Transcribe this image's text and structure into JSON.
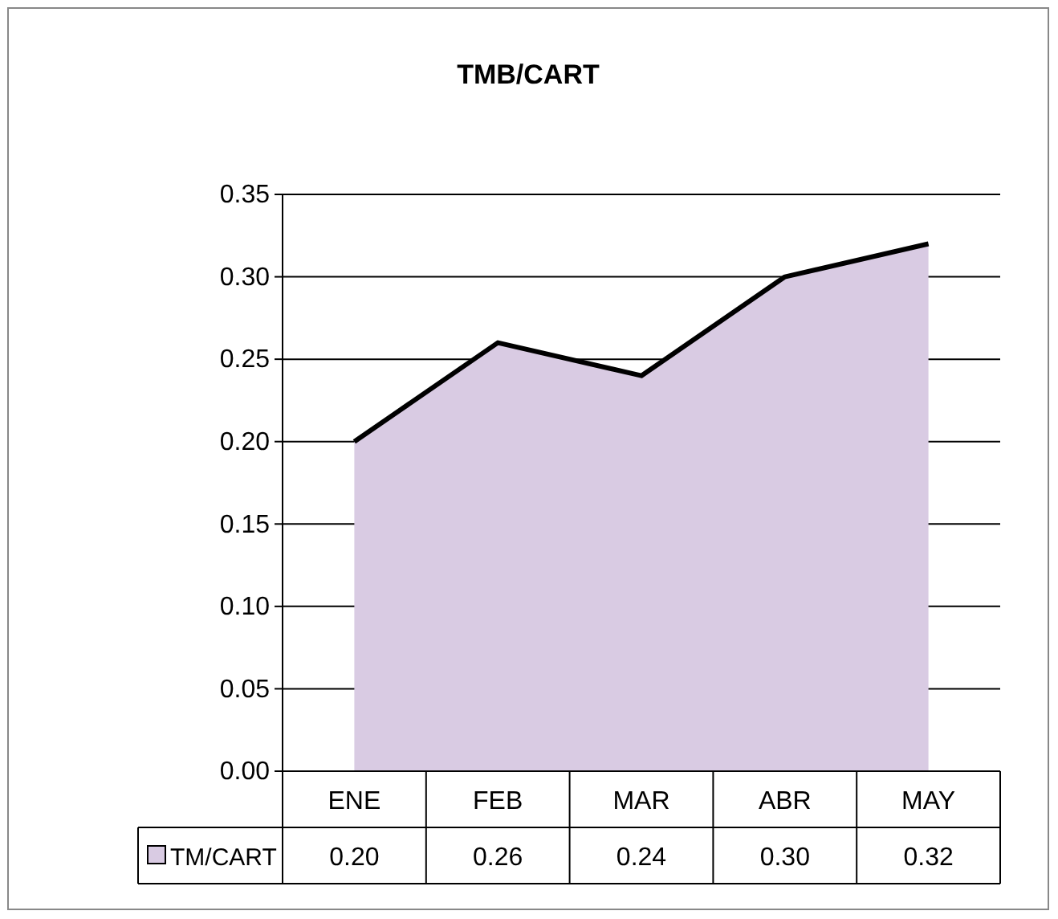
{
  "chart_data": {
    "type": "area",
    "title": "TMB/CART",
    "categories": [
      "ENE",
      "FEB",
      "MAR",
      "ABR",
      "MAY"
    ],
    "series": [
      {
        "name": "TM/CART",
        "color": "#d9cbe3",
        "values": [
          0.2,
          0.26,
          0.24,
          0.3,
          0.32
        ],
        "value_labels": [
          "0.20",
          "0.26",
          "0.24",
          "0.30",
          "0.32"
        ]
      }
    ],
    "ylim": [
      0,
      0.35
    ],
    "yticks": [
      {
        "value": 0,
        "label": "0.00"
      },
      {
        "value": 0.05,
        "label": "0.05"
      },
      {
        "value": 0.1,
        "label": "0.10"
      },
      {
        "value": 0.15,
        "label": "0.15"
      },
      {
        "value": 0.2,
        "label": "0.20"
      },
      {
        "value": 0.25,
        "label": "0.25"
      },
      {
        "value": 0.3,
        "label": "0.30"
      },
      {
        "value": 0.35,
        "label": "0.35"
      }
    ],
    "grid": "y",
    "legend": "bottom left"
  }
}
